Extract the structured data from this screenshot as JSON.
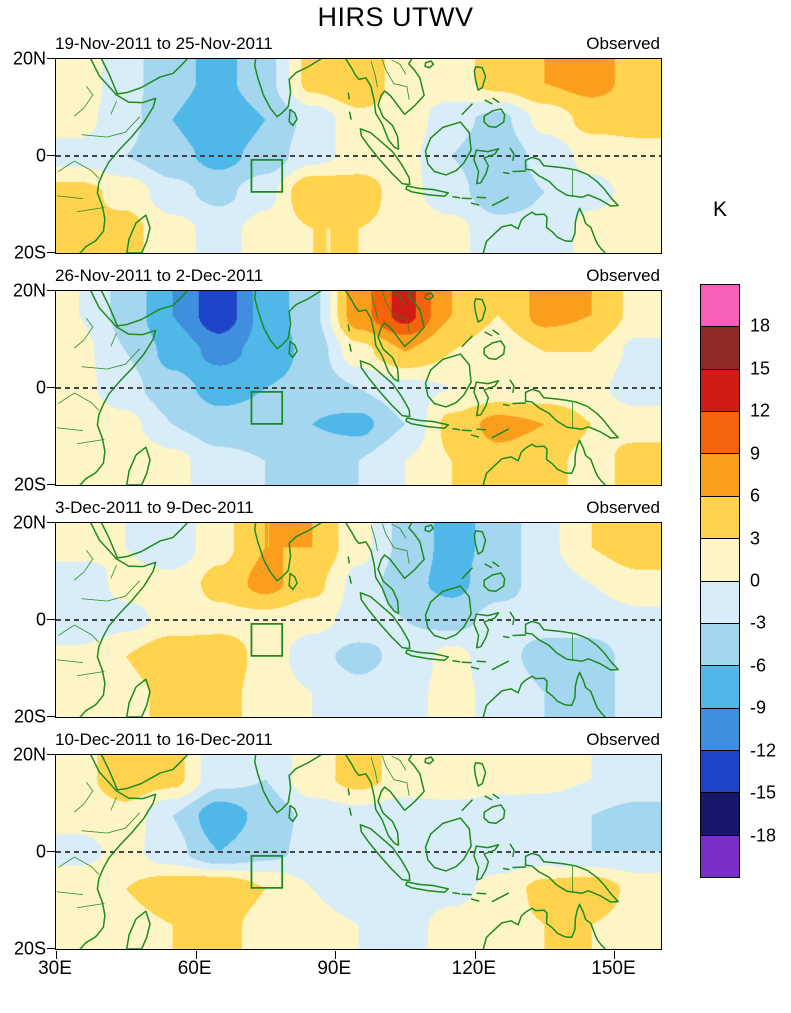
{
  "title": "HIRS UTWV",
  "panels": [
    {
      "date_range": "19-Nov-2011 to 25-Nov-2011",
      "source": "Observed"
    },
    {
      "date_range": "26-Nov-2011 to 2-Dec-2011",
      "source": "Observed"
    },
    {
      "date_range": "3-Dec-2011 to 9-Dec-2011",
      "source": "Observed"
    },
    {
      "date_range": "10-Dec-2011 to 16-Dec-2011",
      "source": "Observed"
    }
  ],
  "axes": {
    "lat_labels": [
      "20N",
      "0",
      "20S"
    ],
    "lon_labels": [
      "30E",
      "60E",
      "90E",
      "120E",
      "150E"
    ]
  },
  "colorbar": {
    "unit": "K",
    "tick_labels": [
      "18",
      "15",
      "12",
      "9",
      "6",
      "3",
      "0",
      "-3",
      "-6",
      "-9",
      "-12",
      "-15",
      "-18"
    ]
  },
  "map_colors": {
    "coastline": "#1e8b1e",
    "equator_line": "#444444",
    "study_box": "#1e8b1e"
  },
  "chart_data": {
    "type": "heatmap",
    "title": "HIRS UTWV",
    "unit": "K",
    "lon_range": [
      30,
      160
    ],
    "lat_range": [
      -20,
      20
    ],
    "contour_levels": [
      -18,
      -15,
      -12,
      -9,
      -6,
      -3,
      0,
      3,
      6,
      9,
      12,
      15,
      18
    ],
    "colors": [
      "#7A30C8",
      "#16166B",
      "#1E45C9",
      "#3F8FDE",
      "#4FB8E8",
      "#A5D6EF",
      "#D9EDF8",
      "#FDF5C5",
      "#FFD34D",
      "#FB9E1E",
      "#F4640D",
      "#D01B16",
      "#8F2B24",
      "#F75FB8"
    ],
    "grid_lons": [
      35,
      45,
      55,
      65,
      75,
      85,
      95,
      105,
      115,
      125,
      135,
      145,
      155
    ],
    "grid_lats": [
      15,
      7.5,
      0,
      -7.5,
      -15
    ],
    "panels": [
      {
        "label": "19-Nov-2011 to 25-Nov-2011",
        "source": "Observed",
        "values": [
          [
            2,
            -2,
            -5,
            -7,
            -4,
            4,
            6,
            1,
            2,
            4,
            6,
            7,
            5
          ],
          [
            1,
            -2,
            -6,
            -9,
            -6,
            -2,
            2,
            2,
            -2,
            -4,
            1,
            4,
            4
          ],
          [
            -1,
            -3,
            -5,
            -7,
            -5,
            -1,
            1,
            1,
            -3,
            -5,
            -2,
            1,
            2
          ],
          [
            4,
            2,
            -2,
            -4,
            -1,
            6,
            5,
            1,
            -2,
            -5,
            -3,
            -1,
            1
          ],
          [
            3,
            4,
            1,
            -1,
            1,
            3,
            3,
            2,
            1,
            -2,
            -2,
            1,
            2
          ]
        ]
      },
      {
        "label": "26-Nov-2011 to 2-Dec-2011",
        "source": "Observed",
        "values": [
          [
            0,
            -4,
            -9,
            -14,
            -8,
            -4,
            8,
            13,
            6,
            3,
            7,
            6,
            2
          ],
          [
            1,
            -3,
            -7,
            -10,
            -8,
            -5,
            2,
            6,
            3,
            1,
            3,
            3,
            -1
          ],
          [
            1,
            -2,
            -5,
            -7,
            -6,
            -5,
            -3,
            -1,
            0,
            1,
            1,
            1,
            -2
          ],
          [
            2,
            1,
            -3,
            -5,
            -5,
            -6,
            -7,
            -3,
            4,
            7,
            6,
            3,
            2
          ],
          [
            2,
            3,
            1,
            -2,
            -3,
            -4,
            -3,
            0,
            3,
            5,
            4,
            2,
            4
          ]
        ]
      },
      {
        "label": "3-Dec-2011 to 9-Dec-2011",
        "source": "Observed",
        "values": [
          [
            1,
            0,
            -2,
            2,
            6,
            6,
            1,
            -4,
            -7,
            -5,
            -1,
            3,
            5
          ],
          [
            -2,
            1,
            1,
            4,
            7,
            4,
            -1,
            -5,
            -7,
            -4,
            -2,
            0,
            2
          ],
          [
            -3,
            -1,
            1,
            2,
            2,
            1,
            -1,
            -3,
            -4,
            -2,
            -2,
            -2,
            -1
          ],
          [
            1,
            3,
            6,
            5,
            2,
            -2,
            -4,
            -2,
            1,
            -2,
            -4,
            -4,
            -2
          ],
          [
            1,
            2,
            4,
            4,
            2,
            0,
            -2,
            -1,
            1,
            -1,
            -3,
            -4,
            -2
          ]
        ]
      },
      {
        "label": "10-Dec-2011 to 16-Dec-2011",
        "source": "Observed",
        "values": [
          [
            2,
            5,
            4,
            -2,
            -3,
            2,
            4,
            2,
            3,
            2,
            1,
            0,
            -1
          ],
          [
            1,
            2,
            -3,
            -8,
            -5,
            -2,
            -1,
            -2,
            -2,
            -3,
            -2,
            -3,
            -4
          ],
          [
            -1,
            1,
            -2,
            -6,
            -4,
            -2,
            -3,
            -2,
            -3,
            -2,
            -2,
            -3,
            -3
          ],
          [
            2,
            3,
            5,
            6,
            3,
            0,
            -2,
            -2,
            -1,
            1,
            4,
            5,
            2
          ],
          [
            1,
            2,
            3,
            4,
            2,
            1,
            0,
            -1,
            1,
            2,
            3,
            3,
            2
          ]
        ]
      }
    ]
  }
}
